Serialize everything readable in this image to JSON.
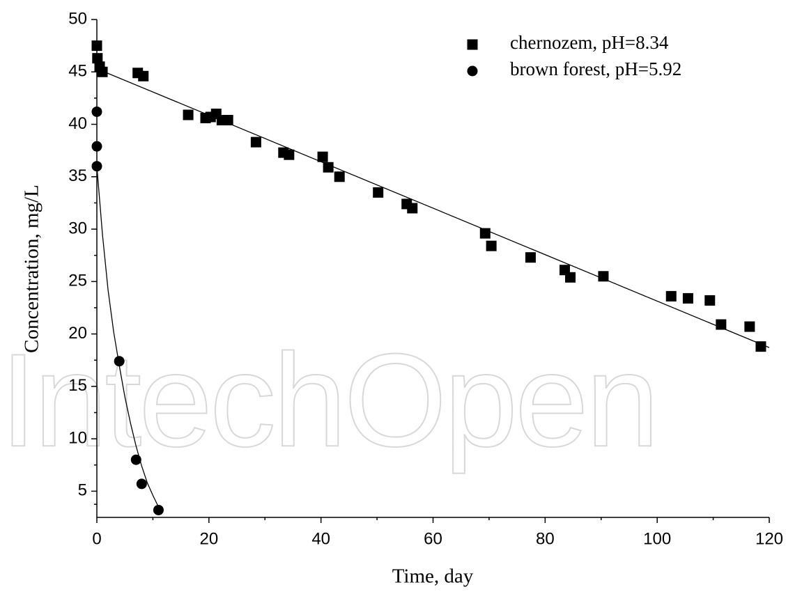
{
  "chart_data": {
    "type": "scatter",
    "x_label": "Time, day",
    "y_label": "Concentration, mg/L",
    "watermark": "IntechOpen",
    "xlim": [
      0,
      120
    ],
    "xticks": [
      0,
      20,
      40,
      60,
      80,
      100,
      120
    ],
    "ylim": [
      2.5,
      50
    ],
    "yticks": [
      5,
      10,
      15,
      20,
      25,
      30,
      35,
      40,
      45,
      50
    ],
    "legend": "upper right",
    "series": [
      {
        "name": "chernozem, pH=8.34",
        "marker": "square",
        "color": "#000000",
        "x": [
          0,
          0.1,
          0.5,
          1,
          7.3,
          8.3,
          16.3,
          19.4,
          20.3,
          21.3,
          22.3,
          23.4,
          28.4,
          33.3,
          34.3,
          40.3,
          41.3,
          43.3,
          50.2,
          55.3,
          56.3,
          69.3,
          70.4,
          77.4,
          83.5,
          84.5,
          90.4,
          102.5,
          105.5,
          109.4,
          111.4,
          116.5,
          118.5
        ],
        "values": [
          47.5,
          46.3,
          45.5,
          45.0,
          44.9,
          44.6,
          40.9,
          40.6,
          40.7,
          41.0,
          40.4,
          40.4,
          38.3,
          37.3,
          37.1,
          36.9,
          35.9,
          35.0,
          33.5,
          32.4,
          32.0,
          29.6,
          28.4,
          27.3,
          26.1,
          25.4,
          25.5,
          23.6,
          23.4,
          23.2,
          20.9,
          20.7,
          18.8
        ],
        "fit": {
          "x": [
            0,
            120
          ],
          "values": [
            45.3,
            18.7
          ]
        }
      },
      {
        "name": "brown forest, pH=5.92",
        "marker": "circle",
        "color": "#000000",
        "x": [
          0,
          0,
          0,
          4.0,
          7.0,
          8.0,
          11.0
        ],
        "values": [
          41.2,
          37.9,
          36.0,
          17.4,
          8.0,
          5.7,
          3.2
        ],
        "fit": {
          "x": [
            0,
            1,
            2,
            3,
            4,
            5,
            6,
            7,
            8,
            9,
            10,
            11
          ],
          "values": [
            36,
            29.5,
            24.2,
            20.2,
            17.0,
            14.0,
            11.5,
            9.3,
            7.4,
            5.8,
            4.6,
            3.5
          ]
        }
      }
    ]
  }
}
